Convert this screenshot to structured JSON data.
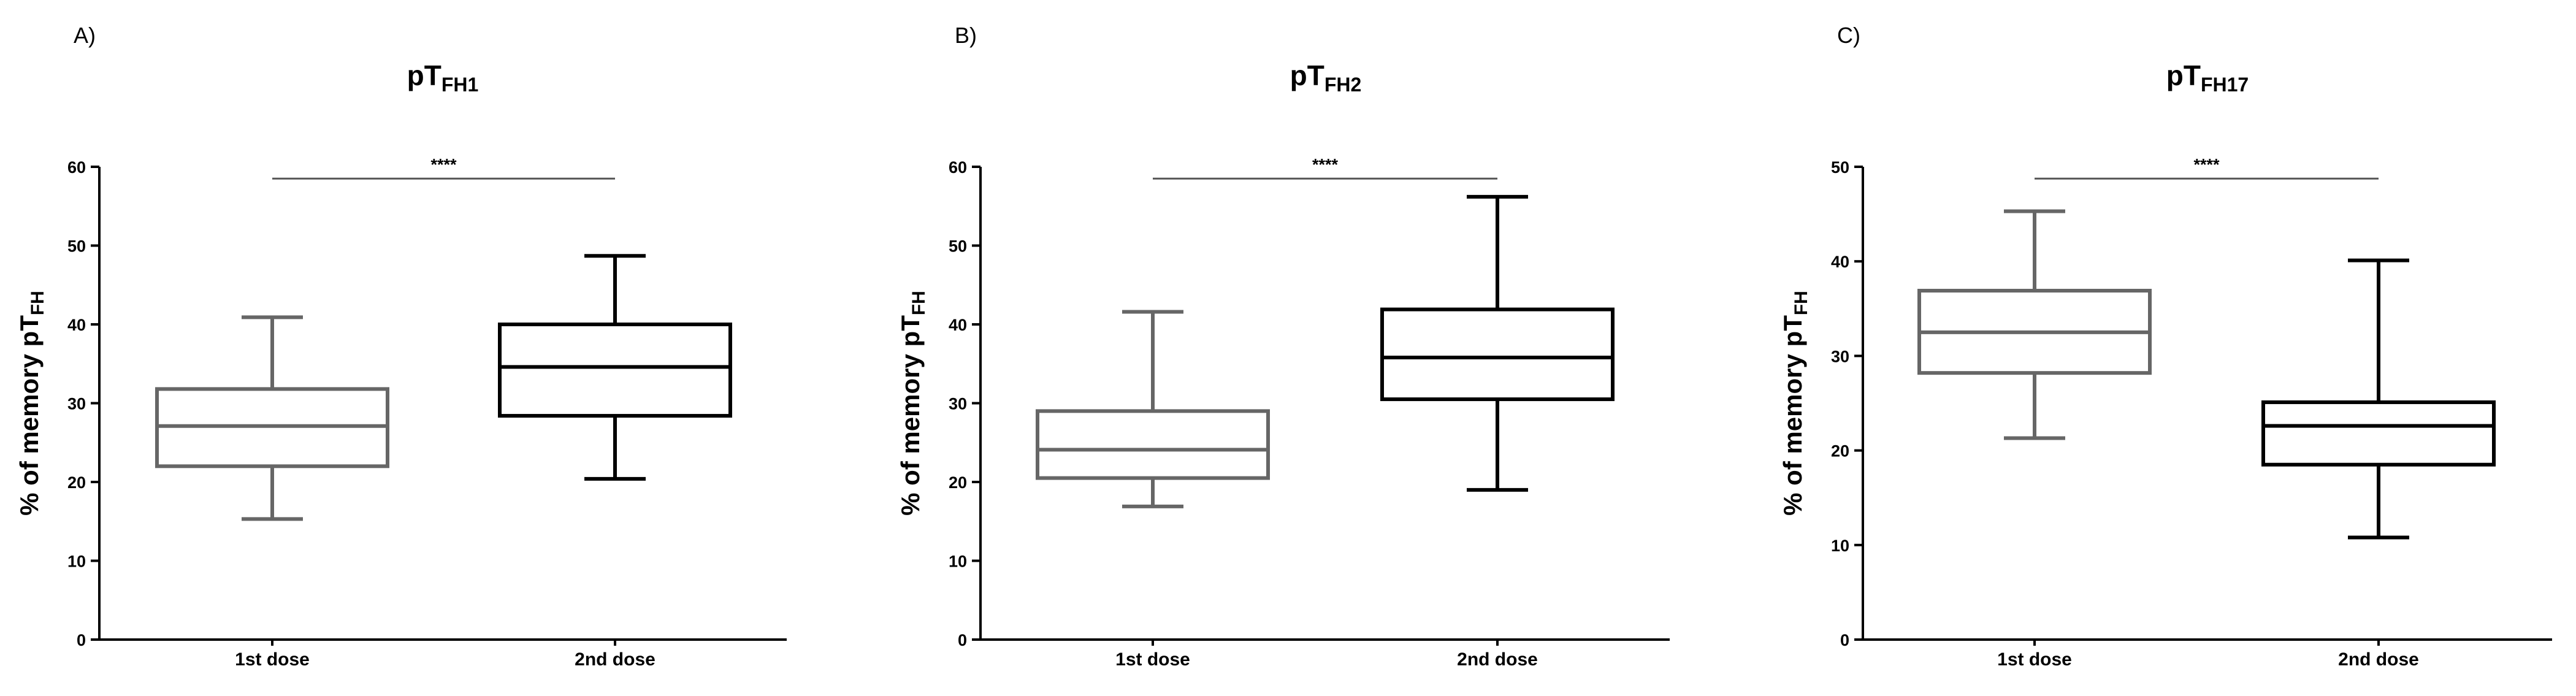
{
  "colors": {
    "first_dose": "#666666",
    "second_dose": "#000000",
    "axis": "#000000",
    "significance_line": "#555555"
  },
  "chart_data": [
    {
      "type": "box",
      "panel": "A)",
      "title": {
        "main": "pT",
        "sub": "FH1"
      },
      "ylabel": {
        "main": "% of memory pT",
        "sub": "FH"
      },
      "ylim": [
        0,
        60
      ],
      "yticks": [
        "0",
        "10",
        "20",
        "30",
        "40",
        "50",
        "60"
      ],
      "categories": [
        "1st dose",
        "2nd dose"
      ],
      "series": [
        {
          "category": "1st dose",
          "min": 15.3,
          "q1": 22.0,
          "median": 27.1,
          "q3": 31.8,
          "max": 40.9
        },
        {
          "category": "2nd dose",
          "min": 20.4,
          "q1": 28.4,
          "median": 34.6,
          "q3": 40.0,
          "max": 48.7
        }
      ],
      "significance": {
        "label": "****",
        "y": 58.5
      },
      "grid": false,
      "legend": "none"
    },
    {
      "type": "box",
      "panel": "B)",
      "title": {
        "main": "pT",
        "sub": "FH2"
      },
      "ylabel": {
        "main": "% of memory pT",
        "sub": "FH"
      },
      "ylim": [
        0,
        60
      ],
      "yticks": [
        "0",
        "10",
        "20",
        "30",
        "40",
        "50",
        "60"
      ],
      "categories": [
        "1st dose",
        "2nd dose"
      ],
      "series": [
        {
          "category": "1st dose",
          "min": 16.9,
          "q1": 20.5,
          "median": 24.1,
          "q3": 29.0,
          "max": 41.6
        },
        {
          "category": "2nd dose",
          "min": 19.0,
          "q1": 30.5,
          "median": 35.8,
          "q3": 41.9,
          "max": 56.2
        }
      ],
      "significance": {
        "label": "****",
        "y": 58.5
      },
      "grid": false,
      "legend": "none"
    },
    {
      "type": "box",
      "panel": "C)",
      "title": {
        "main": "pT",
        "sub": "FH17"
      },
      "ylabel": {
        "main": "% of memory pT",
        "sub": "FH"
      },
      "ylim": [
        0,
        50
      ],
      "yticks": [
        "0",
        "10",
        "20",
        "30",
        "40",
        "50"
      ],
      "categories": [
        "1st dose",
        "2nd dose"
      ],
      "series": [
        {
          "category": "1st dose",
          "min": 21.3,
          "q1": 28.2,
          "median": 32.5,
          "q3": 36.9,
          "max": 45.3
        },
        {
          "category": "2nd dose",
          "min": 10.8,
          "q1": 18.5,
          "median": 22.6,
          "q3": 25.1,
          "max": 40.1
        }
      ],
      "significance": {
        "label": "****",
        "y": 48.75
      },
      "grid": false,
      "legend": "none"
    }
  ]
}
